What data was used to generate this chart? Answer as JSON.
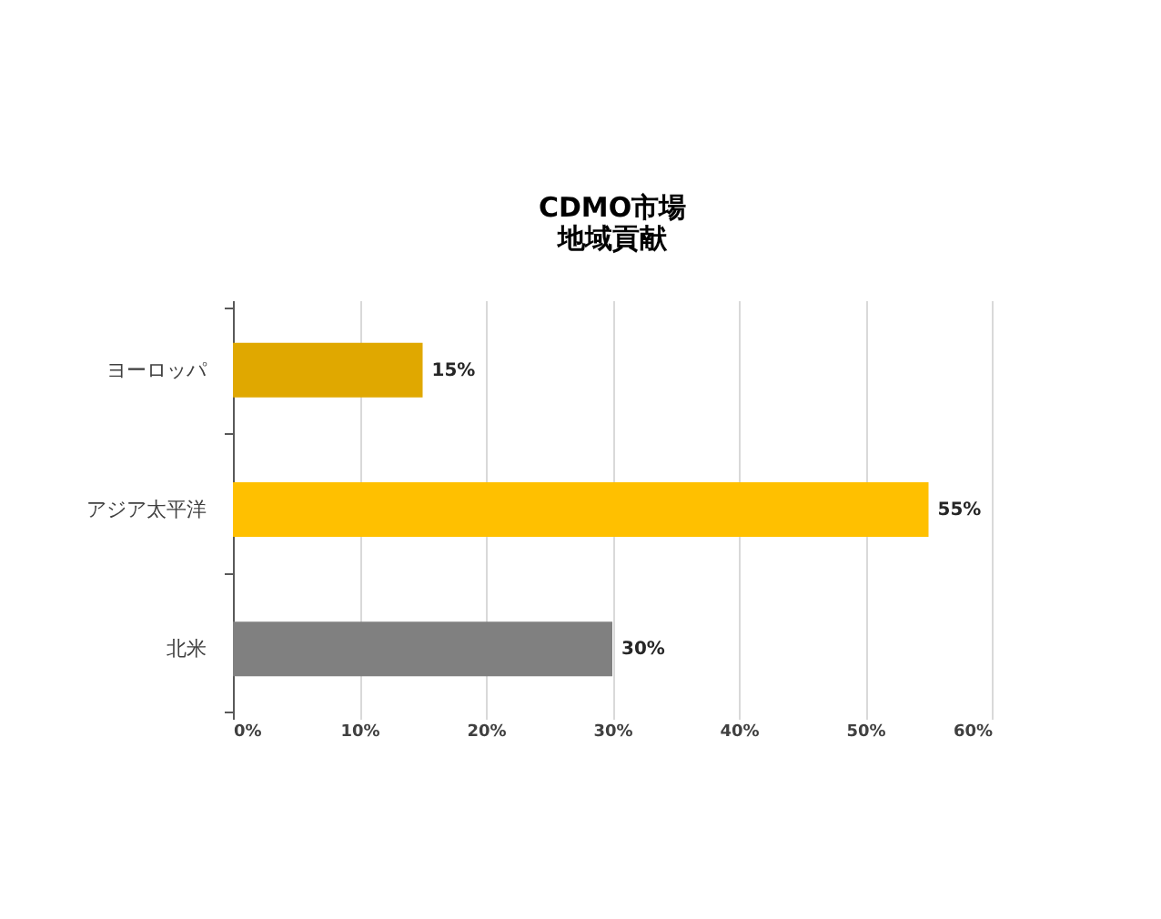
{
  "chart_data": {
    "type": "bar",
    "orientation": "horizontal",
    "title": "CDMO市場",
    "subtitle": "地域貢献",
    "categories": [
      "ヨーロッパ",
      "アジア太平洋",
      "北米"
    ],
    "values": [
      15,
      55,
      30
    ],
    "colors": [
      "#e0a800",
      "#ffc000",
      "#808080"
    ],
    "value_labels": [
      "15%",
      "55%",
      "30%"
    ],
    "xlim": [
      0,
      60
    ],
    "xticks": [
      {
        "value": 0,
        "label": "0%"
      },
      {
        "value": 10,
        "label": "10%"
      },
      {
        "value": 20,
        "label": "20%"
      },
      {
        "value": 30,
        "label": "30%"
      },
      {
        "value": 40,
        "label": "40%"
      },
      {
        "value": 50,
        "label": "50%"
      },
      {
        "value": 60,
        "label": "60%"
      }
    ],
    "grid": "x",
    "legend": false
  }
}
